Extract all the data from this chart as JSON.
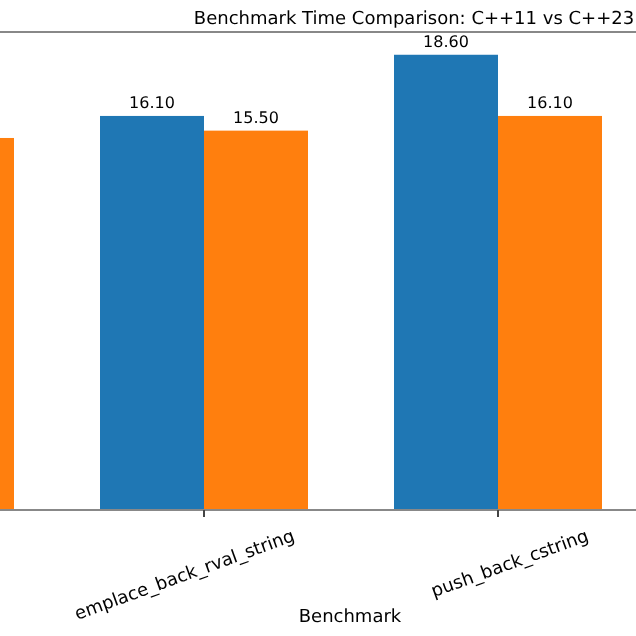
{
  "chart_data": {
    "type": "bar",
    "title": "Benchmark Time Comparison: C++11 vs C++23",
    "xlabel": "Benchmark",
    "categories": [
      null,
      "emplace_back_rval_string",
      "push_back_cstring"
    ],
    "series": [
      {
        "color": "#1f77b4",
        "values": [
          null,
          16.1,
          18.6
        ],
        "value_labels": [
          null,
          "16.10",
          "18.60"
        ]
      },
      {
        "color": "#ff7f0e",
        "values": [
          15.2,
          15.5,
          16.1
        ],
        "value_labels": [
          null,
          "15.50",
          "16.10"
        ]
      }
    ],
    "ylim": [
      0,
      19.53
    ],
    "tick_labels": "x"
  }
}
